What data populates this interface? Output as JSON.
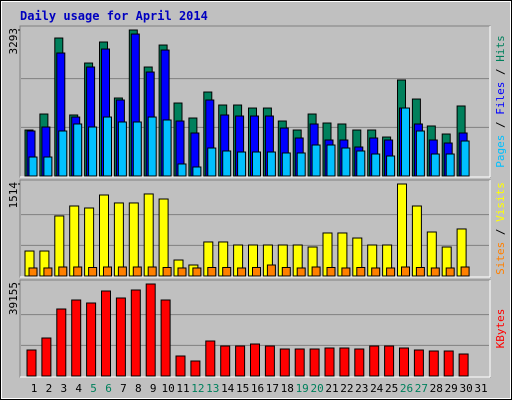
{
  "chart_data": [
    {
      "type": "bar",
      "title": "Daily usage for April 2014",
      "ylim": [
        0,
        3293
      ],
      "yticks": [
        3293
      ],
      "legend_separator": " / ",
      "series": [
        {
          "name": "Hits",
          "color": "#00805c",
          "values": [
            1037,
            1398,
            3112,
            1376,
            2548,
            3022,
            1759,
            3293,
            2458,
            2954,
            1646,
            1308,
            1894,
            1601,
            1601,
            1533,
            1533,
            1240,
            1037,
            1398,
            1195,
            1173,
            1037,
            1037,
            879,
            2165,
            1736,
            1128,
            947,
            1579,
            null
          ]
        },
        {
          "name": "Files",
          "color": "#0000ff",
          "values": [
            1015,
            1105,
            2774,
            1330,
            2458,
            2864,
            1714,
            3202,
            2345,
            2841,
            1240,
            970,
            1714,
            1376,
            1353,
            1353,
            1353,
            1082,
            857,
            1173,
            812,
            812,
            654,
            857,
            812,
            1533,
            1173,
            812,
            744,
            970,
            null
          ]
        },
        {
          "name": "Pages",
          "color": "#00c0ff",
          "values": [
            428,
            428,
            1015,
            1173,
            1105,
            1330,
            1218,
            1218,
            1330,
            1263,
            271,
            203,
            631,
            564,
            541,
            541,
            541,
            519,
            519,
            699,
            699,
            631,
            564,
            496,
            451,
            1533,
            1015,
            496,
            496,
            789,
            null
          ]
        }
      ]
    },
    {
      "type": "bar",
      "ylim": [
        0,
        1514
      ],
      "yticks": [
        1514
      ],
      "legend_separator": " / ",
      "series": [
        {
          "name": "Visits",
          "color": "#ffff00",
          "values": [
            411,
            411,
            988,
            1152,
            1119,
            1333,
            1202,
            1202,
            1350,
            1267,
            263,
            181,
            560,
            560,
            510,
            510,
            510,
            510,
            510,
            477,
            708,
            708,
            625,
            510,
            510,
            1514,
            1152,
            724,
            477,
            774,
            null
          ]
        },
        {
          "name": "Sites",
          "color": "#ff8000",
          "values": [
            132,
            132,
            148,
            148,
            140,
            148,
            148,
            148,
            148,
            140,
            132,
            132,
            140,
            140,
            132,
            140,
            181,
            140,
            132,
            148,
            140,
            132,
            140,
            132,
            132,
            148,
            140,
            132,
            132,
            148,
            null
          ]
        }
      ]
    },
    {
      "type": "bar",
      "ylim": [
        0,
        39155
      ],
      "yticks": [
        39155
      ],
      "categories": [
        "1",
        "2",
        "3",
        "4",
        "5",
        "6",
        "7",
        "8",
        "9",
        "10",
        "11",
        "12",
        "13",
        "14",
        "15",
        "16",
        "17",
        "18",
        "19",
        "20",
        "21",
        "22",
        "23",
        "24",
        "25",
        "26",
        "27",
        "28",
        "29",
        "30",
        "31"
      ],
      "category_colors": [
        "#000000",
        "#000000",
        "#000000",
        "#000000",
        "#00805c",
        "#00805c",
        "#000000",
        "#000000",
        "#000000",
        "#000000",
        "#000000",
        "#00805c",
        "#00805c",
        "#000000",
        "#000000",
        "#000000",
        "#000000",
        "#000000",
        "#00805c",
        "#00805c",
        "#000000",
        "#000000",
        "#000000",
        "#000000",
        "#000000",
        "#00805c",
        "#00805c",
        "#000000",
        "#000000",
        "#000000",
        "#000000"
      ],
      "series": [
        {
          "name": "KBytes",
          "color": "#ff0000",
          "values": [
            11066,
            16173,
            28515,
            32346,
            31069,
            36176,
            33197,
            36602,
            39155,
            32346,
            8512,
            6384,
            14896,
            12768,
            12768,
            13619,
            12768,
            11491,
            11491,
            11491,
            11917,
            11917,
            11491,
            12768,
            12768,
            11917,
            11066,
            10640,
            10640,
            9363,
            null
          ]
        }
      ]
    }
  ]
}
